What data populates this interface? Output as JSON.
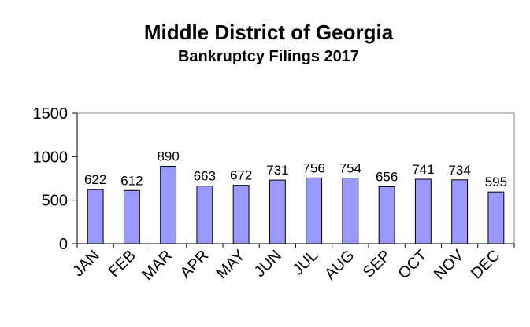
{
  "chart_data": {
    "type": "bar",
    "title": "Middle District of Georgia",
    "subtitle": "Bankruptcy  Filings 2017",
    "categories": [
      "JAN",
      "FEB",
      "MAR",
      "APR",
      "MAY",
      "JUN",
      "JUL",
      "AUG",
      "SEP",
      "OCT",
      "NOV",
      "DEC"
    ],
    "values": [
      622,
      612,
      890,
      663,
      672,
      731,
      756,
      754,
      656,
      741,
      734,
      595
    ],
    "data_labels": [
      "622",
      "612",
      "890",
      "663",
      "672",
      "731",
      "756",
      "754",
      "656",
      "741",
      "734",
      "595"
    ],
    "yticks": [
      "0",
      "500",
      "1000",
      "1500"
    ],
    "ylim": [
      0,
      1500
    ],
    "xlabel": "",
    "ylabel": "",
    "grid": false,
    "legend": "none",
    "bar_color": "#9999ff",
    "bar_stroke": "#000000"
  }
}
